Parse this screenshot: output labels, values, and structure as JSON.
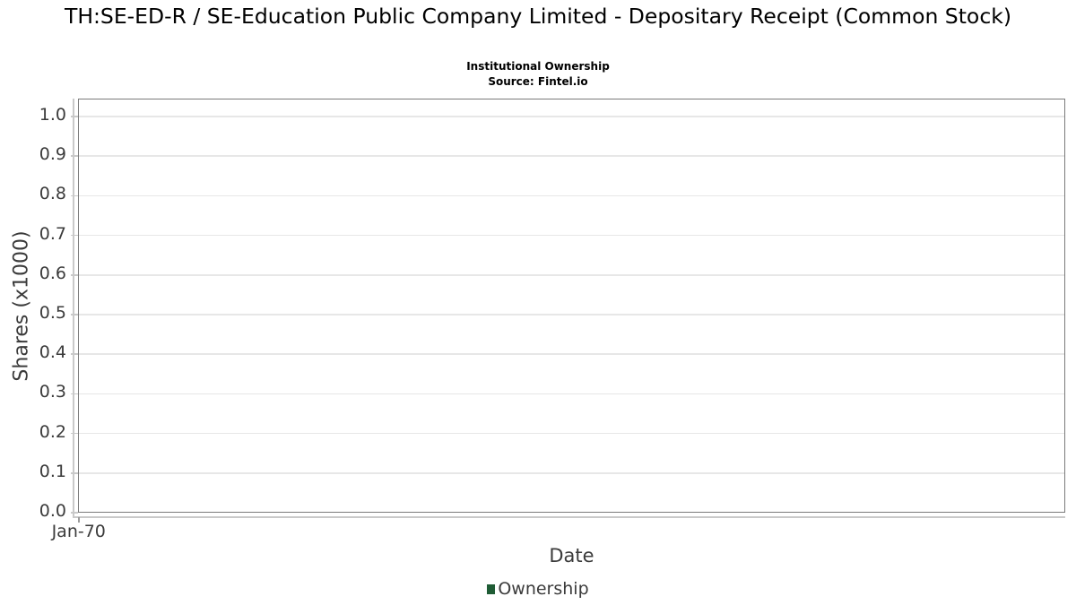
{
  "header": {
    "title": "TH:SE-ED-R / SE-Education Public Company Limited - Depositary Receipt (Common Stock)",
    "subtitle": "Institutional Ownership",
    "source": "Source: Fintel.io"
  },
  "chart_data": {
    "type": "line",
    "title": "TH:SE-ED-R / SE-Education Public Company Limited - Depositary Receipt (Common Stock)",
    "subtitle": "Institutional Ownership",
    "source": "Source: Fintel.io",
    "xlabel": "Date",
    "ylabel": "Shares (x1000)",
    "x_ticks": [
      "Jan-70"
    ],
    "y_ticks": [
      "0.0",
      "0.1",
      "0.2",
      "0.3",
      "0.4",
      "0.5",
      "0.6",
      "0.7",
      "0.8",
      "0.9",
      "1.0"
    ],
    "ylim": [
      0,
      1.045
    ],
    "grid": true,
    "legend": {
      "position": "bottom",
      "entries": [
        {
          "label": "Ownership",
          "color": "#1f5c35"
        }
      ]
    },
    "series": [
      {
        "name": "Ownership",
        "x": [],
        "y": []
      }
    ]
  },
  "colors": {
    "plot_border": "#7a7a7a",
    "gridline": "#e7e7e7",
    "axis_offset_line": "#c9c9c9",
    "tick_label": "#3b3b3b",
    "legend_green": "#1f5c35",
    "background": "#ffffff"
  }
}
